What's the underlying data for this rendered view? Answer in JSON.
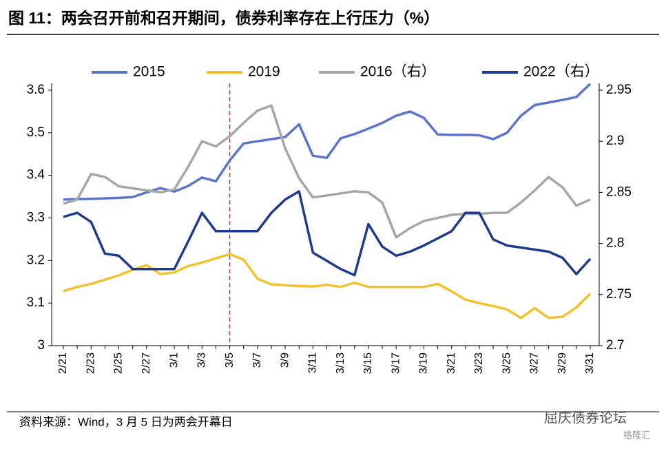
{
  "chart_data": {
    "type": "line",
    "title": "图 11：两会召开前和召开期间，债券利率存在上行压力（%）",
    "source": "资料来源：Wind，3 月 5 日为两会开幕日",
    "watermark": "屈庆债券论坛",
    "watermark2": "格隆汇",
    "categories": [
      "2/21",
      null,
      "2/23",
      null,
      "2/25",
      null,
      "2/27",
      null,
      "3/1",
      null,
      "3/3",
      null,
      "3/5",
      null,
      "3/7",
      null,
      "3/9",
      null,
      "3/11",
      null,
      "3/13",
      null,
      "3/15",
      null,
      "3/17",
      null,
      "3/19",
      null,
      "3/21",
      null,
      "3/23",
      null,
      "3/25",
      null,
      "3/27",
      null,
      "3/29",
      null,
      "3/31"
    ],
    "vline": {
      "category": "3/5",
      "color": "#e03030"
    },
    "ylim": [
      3,
      3.6
    ],
    "yticks": [
      3,
      3.1,
      3.2,
      3.3,
      3.4,
      3.5,
      3.6
    ],
    "y2lim": [
      2.7,
      2.95
    ],
    "y2ticks": [
      2.7,
      2.75,
      2.8,
      2.85,
      2.9,
      2.95
    ],
    "series": [
      {
        "name": "2015",
        "color": "#5b74c9",
        "axis": "y",
        "values": [
          3.343,
          3.344,
          3.345,
          3.346,
          3.347,
          3.349,
          3.36,
          3.37,
          3.362,
          3.375,
          3.395,
          3.386,
          3.435,
          3.475,
          3.48,
          3.485,
          3.49,
          3.52,
          3.446,
          3.441,
          3.487,
          3.497,
          3.51,
          3.523,
          3.54,
          3.55,
          3.535,
          3.496,
          3.495,
          3.495,
          3.494,
          3.485,
          3.5,
          3.54,
          3.565,
          3.571,
          3.577,
          3.584,
          3.615
        ]
      },
      {
        "name": "2019",
        "color": "#f2c12e",
        "axis": "y",
        "values": [
          3.128,
          3.138,
          3.145,
          3.155,
          3.165,
          3.178,
          3.189,
          3.168,
          3.172,
          3.187,
          3.195,
          3.205,
          3.215,
          3.202,
          3.157,
          3.144,
          3.142,
          3.14,
          3.139,
          3.143,
          3.138,
          3.148,
          3.138,
          3.138,
          3.138,
          3.138,
          3.138,
          3.145,
          3.128,
          3.108,
          3.1,
          3.093,
          3.085,
          3.065,
          3.088,
          3.065,
          3.068,
          3.09,
          3.122
        ]
      },
      {
        "name": "2016（右）",
        "color": "#a6a6a6",
        "axis": "y2",
        "values": [
          2.839,
          2.843,
          2.868,
          2.865,
          2.856,
          2.854,
          2.852,
          2.85,
          2.853,
          2.875,
          2.9,
          2.895,
          2.905,
          2.918,
          2.93,
          2.935,
          2.893,
          2.864,
          2.845,
          2.847,
          2.849,
          2.851,
          2.85,
          2.84,
          2.806,
          2.815,
          2.822,
          2.825,
          2.828,
          2.829,
          2.829,
          2.83,
          2.83,
          2.84,
          2.852,
          2.865,
          2.855,
          2.837,
          2.843
        ]
      },
      {
        "name": "2022（右）",
        "color": "#1f3a8a",
        "axis": "y2",
        "values": [
          2.826,
          2.83,
          2.821,
          2.79,
          2.788,
          2.775,
          2.775,
          2.775,
          2.775,
          2.802,
          2.83,
          2.812,
          2.812,
          2.812,
          2.812,
          2.83,
          2.843,
          2.851,
          2.791,
          2.783,
          2.775,
          2.769,
          2.819,
          2.797,
          2.788,
          2.792,
          2.798,
          2.805,
          2.812,
          2.83,
          2.83,
          2.804,
          2.798,
          2.796,
          2.794,
          2.792,
          2.786,
          2.77,
          2.785
        ]
      }
    ]
  }
}
